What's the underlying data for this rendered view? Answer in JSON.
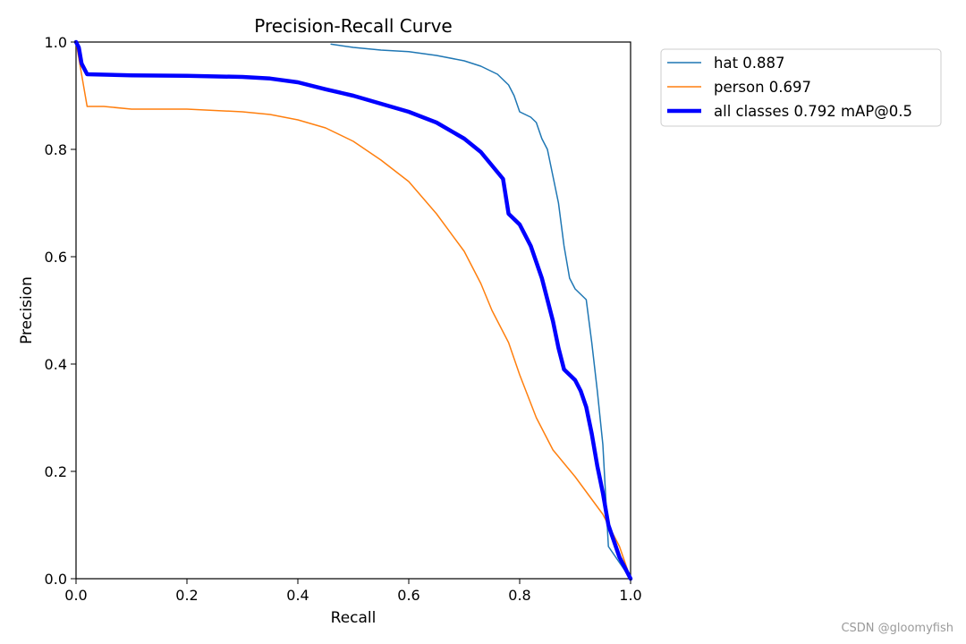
{
  "chart_data": {
    "type": "line",
    "title": "Precision-Recall Curve",
    "xlabel": "Recall",
    "ylabel": "Precision",
    "xlim": [
      0,
      1
    ],
    "ylim": [
      0,
      1
    ],
    "xticks": [
      "0.0",
      "0.2",
      "0.4",
      "0.6",
      "0.8",
      "1.0"
    ],
    "yticks": [
      "0.0",
      "0.2",
      "0.4",
      "0.6",
      "0.8",
      "1.0"
    ],
    "grid": false,
    "legend_position": "outside-top-right",
    "series": [
      {
        "name": "hat 0.887",
        "color": "#1f77b4",
        "line_width": "thin",
        "points": [
          [
            0.46,
            0.996
          ],
          [
            0.5,
            0.99
          ],
          [
            0.55,
            0.985
          ],
          [
            0.6,
            0.982
          ],
          [
            0.65,
            0.975
          ],
          [
            0.7,
            0.965
          ],
          [
            0.73,
            0.955
          ],
          [
            0.76,
            0.94
          ],
          [
            0.78,
            0.92
          ],
          [
            0.79,
            0.9
          ],
          [
            0.8,
            0.87
          ],
          [
            0.81,
            0.865
          ],
          [
            0.82,
            0.86
          ],
          [
            0.83,
            0.85
          ],
          [
            0.84,
            0.82
          ],
          [
            0.85,
            0.8
          ],
          [
            0.86,
            0.75
          ],
          [
            0.87,
            0.7
          ],
          [
            0.88,
            0.62
          ],
          [
            0.89,
            0.56
          ],
          [
            0.9,
            0.54
          ],
          [
            0.91,
            0.53
          ],
          [
            0.92,
            0.52
          ],
          [
            0.93,
            0.44
          ],
          [
            0.94,
            0.35
          ],
          [
            0.95,
            0.25
          ],
          [
            0.96,
            0.06
          ],
          [
            1.0,
            0.0
          ]
        ]
      },
      {
        "name": "person 0.697",
        "color": "#ff7f0e",
        "line_width": "thin",
        "points": [
          [
            0.0,
            1.0
          ],
          [
            0.01,
            0.94
          ],
          [
            0.02,
            0.88
          ],
          [
            0.05,
            0.88
          ],
          [
            0.1,
            0.875
          ],
          [
            0.2,
            0.875
          ],
          [
            0.3,
            0.87
          ],
          [
            0.35,
            0.865
          ],
          [
            0.4,
            0.855
          ],
          [
            0.45,
            0.84
          ],
          [
            0.5,
            0.815
          ],
          [
            0.55,
            0.78
          ],
          [
            0.6,
            0.74
          ],
          [
            0.65,
            0.68
          ],
          [
            0.7,
            0.61
          ],
          [
            0.73,
            0.55
          ],
          [
            0.75,
            0.5
          ],
          [
            0.78,
            0.44
          ],
          [
            0.8,
            0.38
          ],
          [
            0.83,
            0.3
          ],
          [
            0.86,
            0.24
          ],
          [
            0.9,
            0.19
          ],
          [
            0.95,
            0.12
          ],
          [
            0.98,
            0.06
          ],
          [
            1.0,
            0.0
          ]
        ]
      },
      {
        "name": "all classes 0.792 mAP@0.5",
        "color": "#0000ff",
        "line_width": "thick",
        "points": [
          [
            0.0,
            1.0
          ],
          [
            0.005,
            0.99
          ],
          [
            0.01,
            0.96
          ],
          [
            0.02,
            0.94
          ],
          [
            0.1,
            0.938
          ],
          [
            0.2,
            0.937
          ],
          [
            0.3,
            0.935
          ],
          [
            0.35,
            0.932
          ],
          [
            0.4,
            0.925
          ],
          [
            0.45,
            0.912
          ],
          [
            0.5,
            0.9
          ],
          [
            0.55,
            0.885
          ],
          [
            0.6,
            0.87
          ],
          [
            0.65,
            0.85
          ],
          [
            0.7,
            0.82
          ],
          [
            0.73,
            0.795
          ],
          [
            0.75,
            0.77
          ],
          [
            0.77,
            0.745
          ],
          [
            0.78,
            0.68
          ],
          [
            0.8,
            0.66
          ],
          [
            0.82,
            0.62
          ],
          [
            0.84,
            0.56
          ],
          [
            0.85,
            0.52
          ],
          [
            0.86,
            0.48
          ],
          [
            0.87,
            0.43
          ],
          [
            0.88,
            0.39
          ],
          [
            0.9,
            0.37
          ],
          [
            0.91,
            0.35
          ],
          [
            0.92,
            0.32
          ],
          [
            0.93,
            0.27
          ],
          [
            0.94,
            0.21
          ],
          [
            0.95,
            0.16
          ],
          [
            0.96,
            0.1
          ],
          [
            0.98,
            0.04
          ],
          [
            1.0,
            0.0
          ]
        ]
      }
    ]
  },
  "watermark": "CSDN @gloomyfish"
}
